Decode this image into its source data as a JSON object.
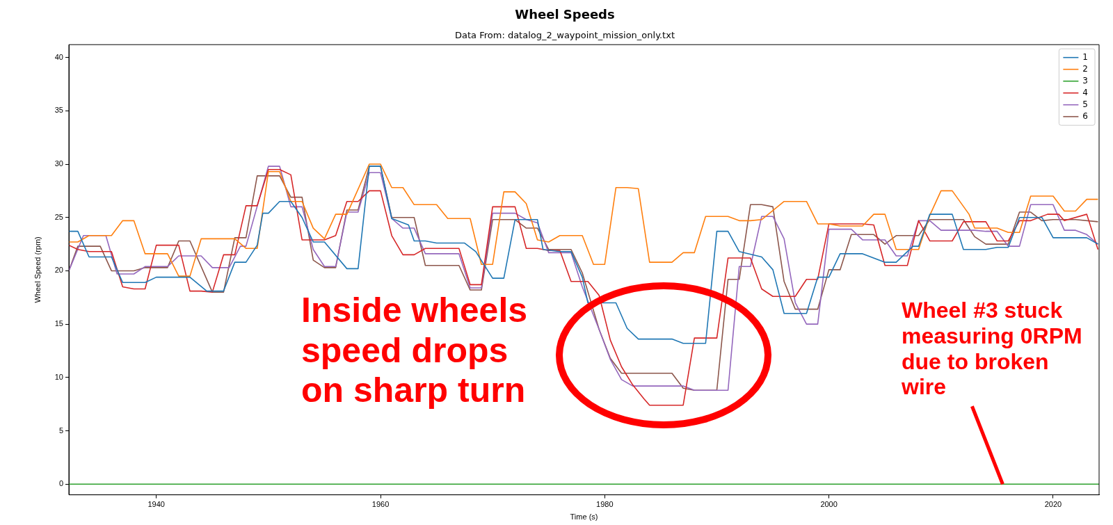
{
  "chart_data": {
    "type": "line",
    "title": "Wheel Speeds",
    "subtitle": "Data From: datalog_2_waypoint_mission_only.txt",
    "xlabel": "Time (s)",
    "ylabel": "Wheel Speed (rpm)",
    "xlim": [
      1932.2,
      2024.1
    ],
    "ylim": [
      -1,
      41.2
    ],
    "xticks": [
      1940,
      1960,
      1980,
      2000,
      2020
    ],
    "yticks": [
      0,
      5,
      10,
      15,
      20,
      25,
      30,
      35,
      40
    ],
    "grid": false,
    "legend": "top right",
    "marker": "none",
    "line_style": "solid",
    "annotations": [
      "Inside wheels speed drops on sharp turn",
      {
        "text": "Wheel #3 stuck measuring 0RPM due to broken wire",
        "x": 2015.5,
        "y": 0
      }
    ],
    "series": [
      {
        "name": "1",
        "color": "#1f77b4",
        "x": [
          1932.2,
          1933,
          1934,
          1936,
          1937,
          1939,
          1940,
          1943,
          1944.5,
          1946,
          1947,
          1948,
          1949,
          1949.5,
          1950,
          1951,
          1952,
          1953,
          1954,
          1955,
          1957,
          1958,
          1959,
          1960,
          1961,
          1962.5,
          1963,
          1964,
          1965,
          1967.5,
          1968.5,
          1970,
          1971,
          1972,
          1974,
          1974.5,
          1976,
          1977,
          1978,
          1978.5,
          1981,
          1982,
          1983,
          1986,
          1987,
          1989,
          1990,
          1991,
          1992,
          1994,
          1995,
          1996,
          1998,
          1999,
          2000,
          2001,
          2003,
          2005,
          2006,
          2007.5,
          2008,
          2009,
          2011,
          2012,
          2014,
          2015,
          2016,
          2017,
          2019,
          2020,
          2023,
          2024
        ],
        "values": [
          23.7,
          23.7,
          21.3,
          21.3,
          18.9,
          18.9,
          19.4,
          19.4,
          18.1,
          18.1,
          20.8,
          20.8,
          22.4,
          25.4,
          25.4,
          26.5,
          26.5,
          25,
          22.7,
          22.7,
          20.2,
          20.2,
          29.8,
          29.8,
          24.9,
          24.3,
          22.8,
          22.8,
          22.6,
          22.6,
          21.8,
          19.3,
          19.3,
          24.8,
          24.8,
          22,
          21.8,
          21.8,
          19.4,
          17,
          17,
          14.6,
          13.6,
          13.6,
          13.2,
          13.2,
          23.7,
          23.7,
          21.8,
          21.3,
          20.1,
          16,
          16,
          19.4,
          19.4,
          21.6,
          21.6,
          20.8,
          20.8,
          22.3,
          22.3,
          25.3,
          25.3,
          22,
          22,
          22.2,
          22.2,
          25,
          25,
          23.1,
          23.1,
          22.5
        ]
      },
      {
        "name": "2",
        "color": "#ff7f0e",
        "x": [
          1932.2,
          1933,
          1934,
          1936,
          1937,
          1938,
          1939,
          1941,
          1942,
          1943,
          1944,
          1947,
          1948,
          1949,
          1950,
          1951,
          1952,
          1953,
          1954,
          1955,
          1956,
          1957,
          1959,
          1960,
          1961,
          1962,
          1963,
          1965,
          1966,
          1968,
          1969,
          1970,
          1971,
          1972,
          1973,
          1974,
          1975,
          1976,
          1978,
          1979,
          1980,
          1981,
          1982,
          1983,
          1984,
          1986,
          1987,
          1988,
          1989,
          1991,
          1992,
          1993,
          1994,
          1996,
          1998,
          1999,
          2000,
          2001,
          2003,
          2004,
          2005,
          2006,
          2008,
          2009,
          2010,
          2011,
          2012.5,
          2013,
          2015,
          2016,
          2017,
          2018,
          2020,
          2021,
          2022,
          2023,
          2024
        ],
        "values": [
          22.7,
          22.7,
          23.3,
          23.3,
          24.7,
          24.7,
          21.6,
          21.6,
          19.5,
          19.5,
          23,
          23,
          22.1,
          22.1,
          29.3,
          29.3,
          26.5,
          26.5,
          24,
          23,
          25.3,
          25.3,
          30,
          30,
          27.8,
          27.8,
          26.2,
          26.2,
          24.9,
          24.9,
          20.6,
          20.6,
          27.4,
          27.4,
          26.3,
          22.9,
          22.7,
          23.3,
          23.3,
          20.6,
          20.6,
          27.8,
          27.8,
          27.7,
          20.8,
          20.8,
          21.7,
          21.7,
          25.1,
          25.1,
          24.7,
          24.7,
          24.8,
          26.5,
          26.5,
          24.4,
          24.4,
          24.2,
          24.2,
          25.3,
          25.3,
          22,
          22,
          25.2,
          27.5,
          27.5,
          25.3,
          24,
          24,
          23.6,
          23.6,
          27,
          27,
          25.6,
          25.6,
          26.7,
          26.7
        ]
      },
      {
        "name": "3",
        "color": "#2ca02c",
        "x": [
          1932.2,
          2024.1
        ],
        "values": [
          0,
          0
        ]
      },
      {
        "name": "4",
        "color": "#d62728",
        "x": [
          1932.2,
          1933,
          1934,
          1936,
          1937,
          1938,
          1939,
          1940,
          1942,
          1943,
          1944,
          1945,
          1946,
          1947,
          1948,
          1949,
          1950,
          1951,
          1952,
          1953,
          1955,
          1956,
          1957,
          1958,
          1959,
          1960,
          1961,
          1962,
          1963,
          1964,
          1967,
          1968,
          1969,
          1970,
          1972,
          1973,
          1974,
          1975,
          1976,
          1977,
          1978.5,
          1979.5,
          1980.5,
          1981.5,
          1982.5,
          1983.5,
          1984,
          1987,
          1988,
          1990,
          1991,
          1993,
          1994,
          1995,
          1997,
          1998,
          1999,
          2000,
          2003,
          2004,
          2005,
          2007,
          2008,
          2009,
          2011,
          2012,
          2014,
          2015,
          2016,
          2017,
          2018,
          2019.5,
          2020.5,
          2021,
          2023,
          2024
        ],
        "values": [
          22.4,
          22,
          21.8,
          21.8,
          18.5,
          18.3,
          18.3,
          22.4,
          22.4,
          18.1,
          18.1,
          18,
          21.5,
          21.5,
          26.1,
          26.1,
          29.5,
          29.5,
          29,
          22.9,
          22.9,
          23.3,
          26.5,
          26.5,
          27.5,
          27.5,
          23.3,
          21.5,
          21.5,
          22.1,
          22.1,
          18.7,
          18.7,
          26,
          26,
          22.1,
          22.1,
          21.9,
          21.9,
          19,
          19,
          17.7,
          13.5,
          11,
          9.3,
          8,
          7.4,
          7.4,
          13.7,
          13.7,
          21.2,
          21.2,
          18.3,
          17.6,
          17.6,
          19.2,
          19.2,
          24.4,
          24.4,
          24.3,
          20.5,
          20.5,
          24.7,
          22.8,
          22.8,
          24.6,
          24.6,
          22.8,
          22.8,
          24.7,
          24.7,
          25.3,
          25.3,
          24.7,
          25.3,
          22
        ]
      },
      {
        "name": "5",
        "color": "#9467bd",
        "x": [
          1932.2,
          1933.5,
          1935.5,
          1936.5,
          1938,
          1939,
          1941,
          1942,
          1944,
          1945,
          1946.5,
          1947.5,
          1948,
          1950,
          1951,
          1952,
          1953,
          1954,
          1955,
          1956,
          1957,
          1958,
          1959,
          1960,
          1961,
          1962,
          1963,
          1964,
          1967,
          1968,
          1969,
          1970,
          1972,
          1973,
          1974,
          1975,
          1977,
          1978,
          1979.5,
          1980.5,
          1981.5,
          1982.5,
          1987,
          1988,
          1991,
          1992,
          1993,
          1994,
          1995,
          1996,
          1997,
          1998,
          1999,
          2000,
          2002,
          2003,
          2005,
          2006,
          2007,
          2008,
          2009,
          2010,
          2013,
          2014,
          2015,
          2016,
          2017,
          2018,
          2020,
          2021,
          2022,
          2023,
          2024
        ],
        "values": [
          20,
          23.3,
          23.3,
          19.7,
          19.7,
          20.4,
          20.4,
          21.4,
          21.4,
          20.3,
          20.3,
          22.3,
          22.3,
          29.8,
          29.8,
          26,
          26,
          22,
          20.4,
          20.4,
          25.5,
          25.5,
          29.2,
          29.2,
          24.9,
          24,
          24,
          21.6,
          21.6,
          18.4,
          18.4,
          25.4,
          25.4,
          24.8,
          24.5,
          21.7,
          21.7,
          18.5,
          14.5,
          11.7,
          9.8,
          9.2,
          9.2,
          8.8,
          8.8,
          20.4,
          20.4,
          25.1,
          25.1,
          23,
          17,
          15,
          15,
          23.9,
          23.9,
          22.9,
          22.9,
          21.4,
          21.4,
          24.7,
          24.7,
          23.8,
          23.8,
          23.7,
          23.7,
          22.3,
          22.3,
          26.2,
          26.2,
          23.8,
          23.8,
          23.4,
          22.5
        ]
      },
      {
        "name": "6",
        "color": "#8c564b",
        "x": [
          1932.2,
          1933,
          1935,
          1936,
          1938,
          1939,
          1941,
          1942,
          1943,
          1945,
          1946,
          1947,
          1948,
          1949,
          1951,
          1952,
          1953,
          1954,
          1955,
          1956,
          1957,
          1958,
          1959,
          1960,
          1961,
          1963,
          1964,
          1967,
          1968,
          1969,
          1970,
          1972,
          1973,
          1974,
          1975,
          1977,
          1978,
          1979.5,
          1980.5,
          1981.5,
          1986,
          1987,
          1988,
          1990,
          1991,
          1992,
          1993,
          1994,
          1995,
          1996,
          1997,
          1999,
          2000,
          2001,
          2002,
          2004,
          2005,
          2006,
          2008,
          2009,
          2012,
          2013,
          2014,
          2016,
          2017,
          2018,
          2019,
          2020,
          2022,
          2024
        ],
        "values": [
          20,
          22.3,
          22.3,
          20,
          20,
          20.3,
          20.3,
          22.8,
          22.8,
          18,
          18,
          23.1,
          23.1,
          28.9,
          28.9,
          26.9,
          26.9,
          21,
          20.3,
          20.3,
          25.7,
          25.7,
          29.8,
          29.8,
          25,
          25,
          20.5,
          20.5,
          18.2,
          18.2,
          24.8,
          24.8,
          24,
          24,
          22,
          22,
          19.8,
          14.5,
          11.8,
          10.4,
          10.4,
          9,
          8.8,
          8.8,
          19.2,
          19.2,
          26.2,
          26.2,
          26,
          19,
          16.4,
          16.4,
          20.1,
          20.1,
          23.4,
          23.4,
          22.5,
          23.3,
          23.3,
          24.8,
          24.8,
          23.2,
          22.5,
          22.5,
          25.5,
          25.5,
          24.7,
          24.8,
          24.8,
          24.6
        ]
      }
    ]
  }
}
